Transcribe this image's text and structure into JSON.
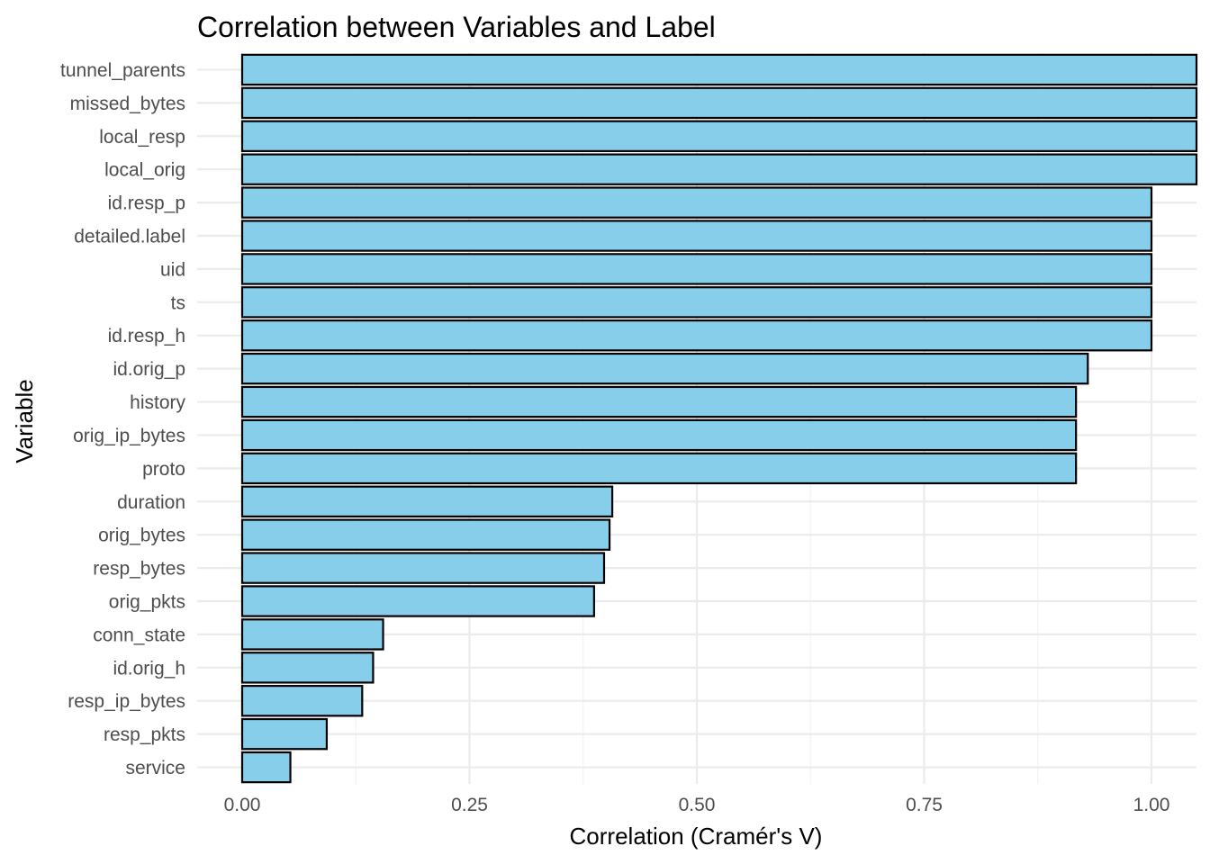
{
  "chart_data": {
    "type": "bar",
    "orientation": "horizontal",
    "title": "Correlation between Variables and Label",
    "xlabel": "Correlation (Cramér's V)",
    "ylabel": "Variable",
    "xlim": [
      0,
      1.05
    ],
    "x_ticks": [
      "0.00",
      "0.25",
      "0.50",
      "0.75",
      "1.00"
    ],
    "x_tick_values": [
      0,
      0.25,
      0.5,
      0.75,
      1.0
    ],
    "grid": true,
    "bar_fill": "#87CEEB",
    "bar_outline": "#000000",
    "categories": [
      "tunnel_parents",
      "missed_bytes",
      "local_resp",
      "local_orig",
      "id.resp_p",
      "detailed.label",
      "uid",
      "ts",
      "id.resp_h",
      "id.orig_p",
      "history",
      "orig_ip_bytes",
      "proto",
      "duration",
      "orig_bytes",
      "resp_bytes",
      "orig_pkts",
      "conn_state",
      "id.orig_h",
      "resp_ip_bytes",
      "resp_pkts",
      "service"
    ],
    "values": [
      1.05,
      1.05,
      1.05,
      1.05,
      1.0,
      1.0,
      1.0,
      1.0,
      1.0,
      0.93,
      0.917,
      0.917,
      0.917,
      0.407,
      0.404,
      0.398,
      0.387,
      0.155,
      0.144,
      0.132,
      0.093,
      0.053
    ]
  }
}
